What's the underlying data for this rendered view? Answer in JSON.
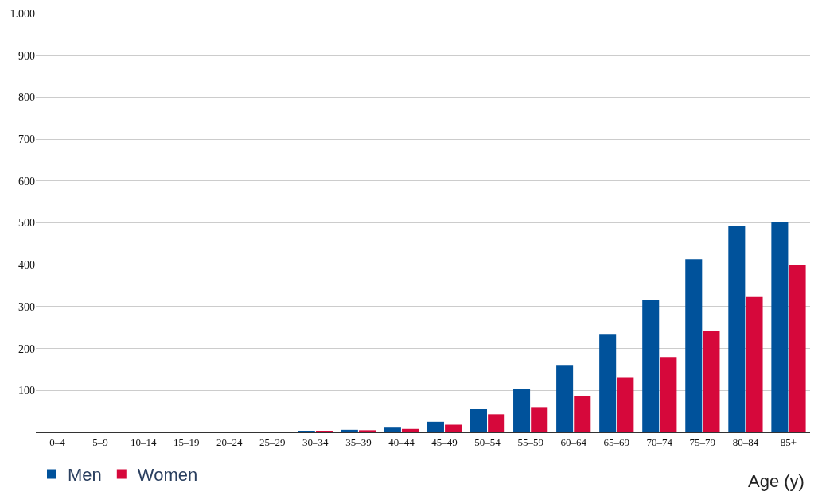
{
  "chart_data": {
    "type": "bar",
    "xlabel": "Age (y)",
    "categories": [
      "0–4",
      "5–9",
      "10–14",
      "15–19",
      "20–24",
      "25–29",
      "30–34",
      "35–39",
      "40–44",
      "45–49",
      "50–54",
      "55–59",
      "60–64",
      "65–69",
      "70–74",
      "75–79",
      "80–84",
      "85+"
    ],
    "series": [
      {
        "name": "Men",
        "color": "#00529b",
        "values": [
          0,
          0,
          0,
          0,
          0,
          0,
          2,
          6,
          11,
          25,
          55,
          103,
          161,
          235,
          316,
          413,
          492,
          501
        ]
      },
      {
        "name": "Women",
        "color": "#d6083b",
        "values": [
          0,
          0,
          0,
          0,
          0,
          0,
          2,
          5,
          8,
          18,
          43,
          60,
          87,
          130,
          180,
          242,
          323,
          399
        ]
      }
    ],
    "ylim": [
      0,
      1000
    ],
    "yticks": [
      100,
      200,
      300,
      400,
      500,
      600,
      700,
      800,
      900,
      {
        "value": 1000,
        "label": "1.000"
      }
    ],
    "grid": "y",
    "legend": "bottom left"
  }
}
